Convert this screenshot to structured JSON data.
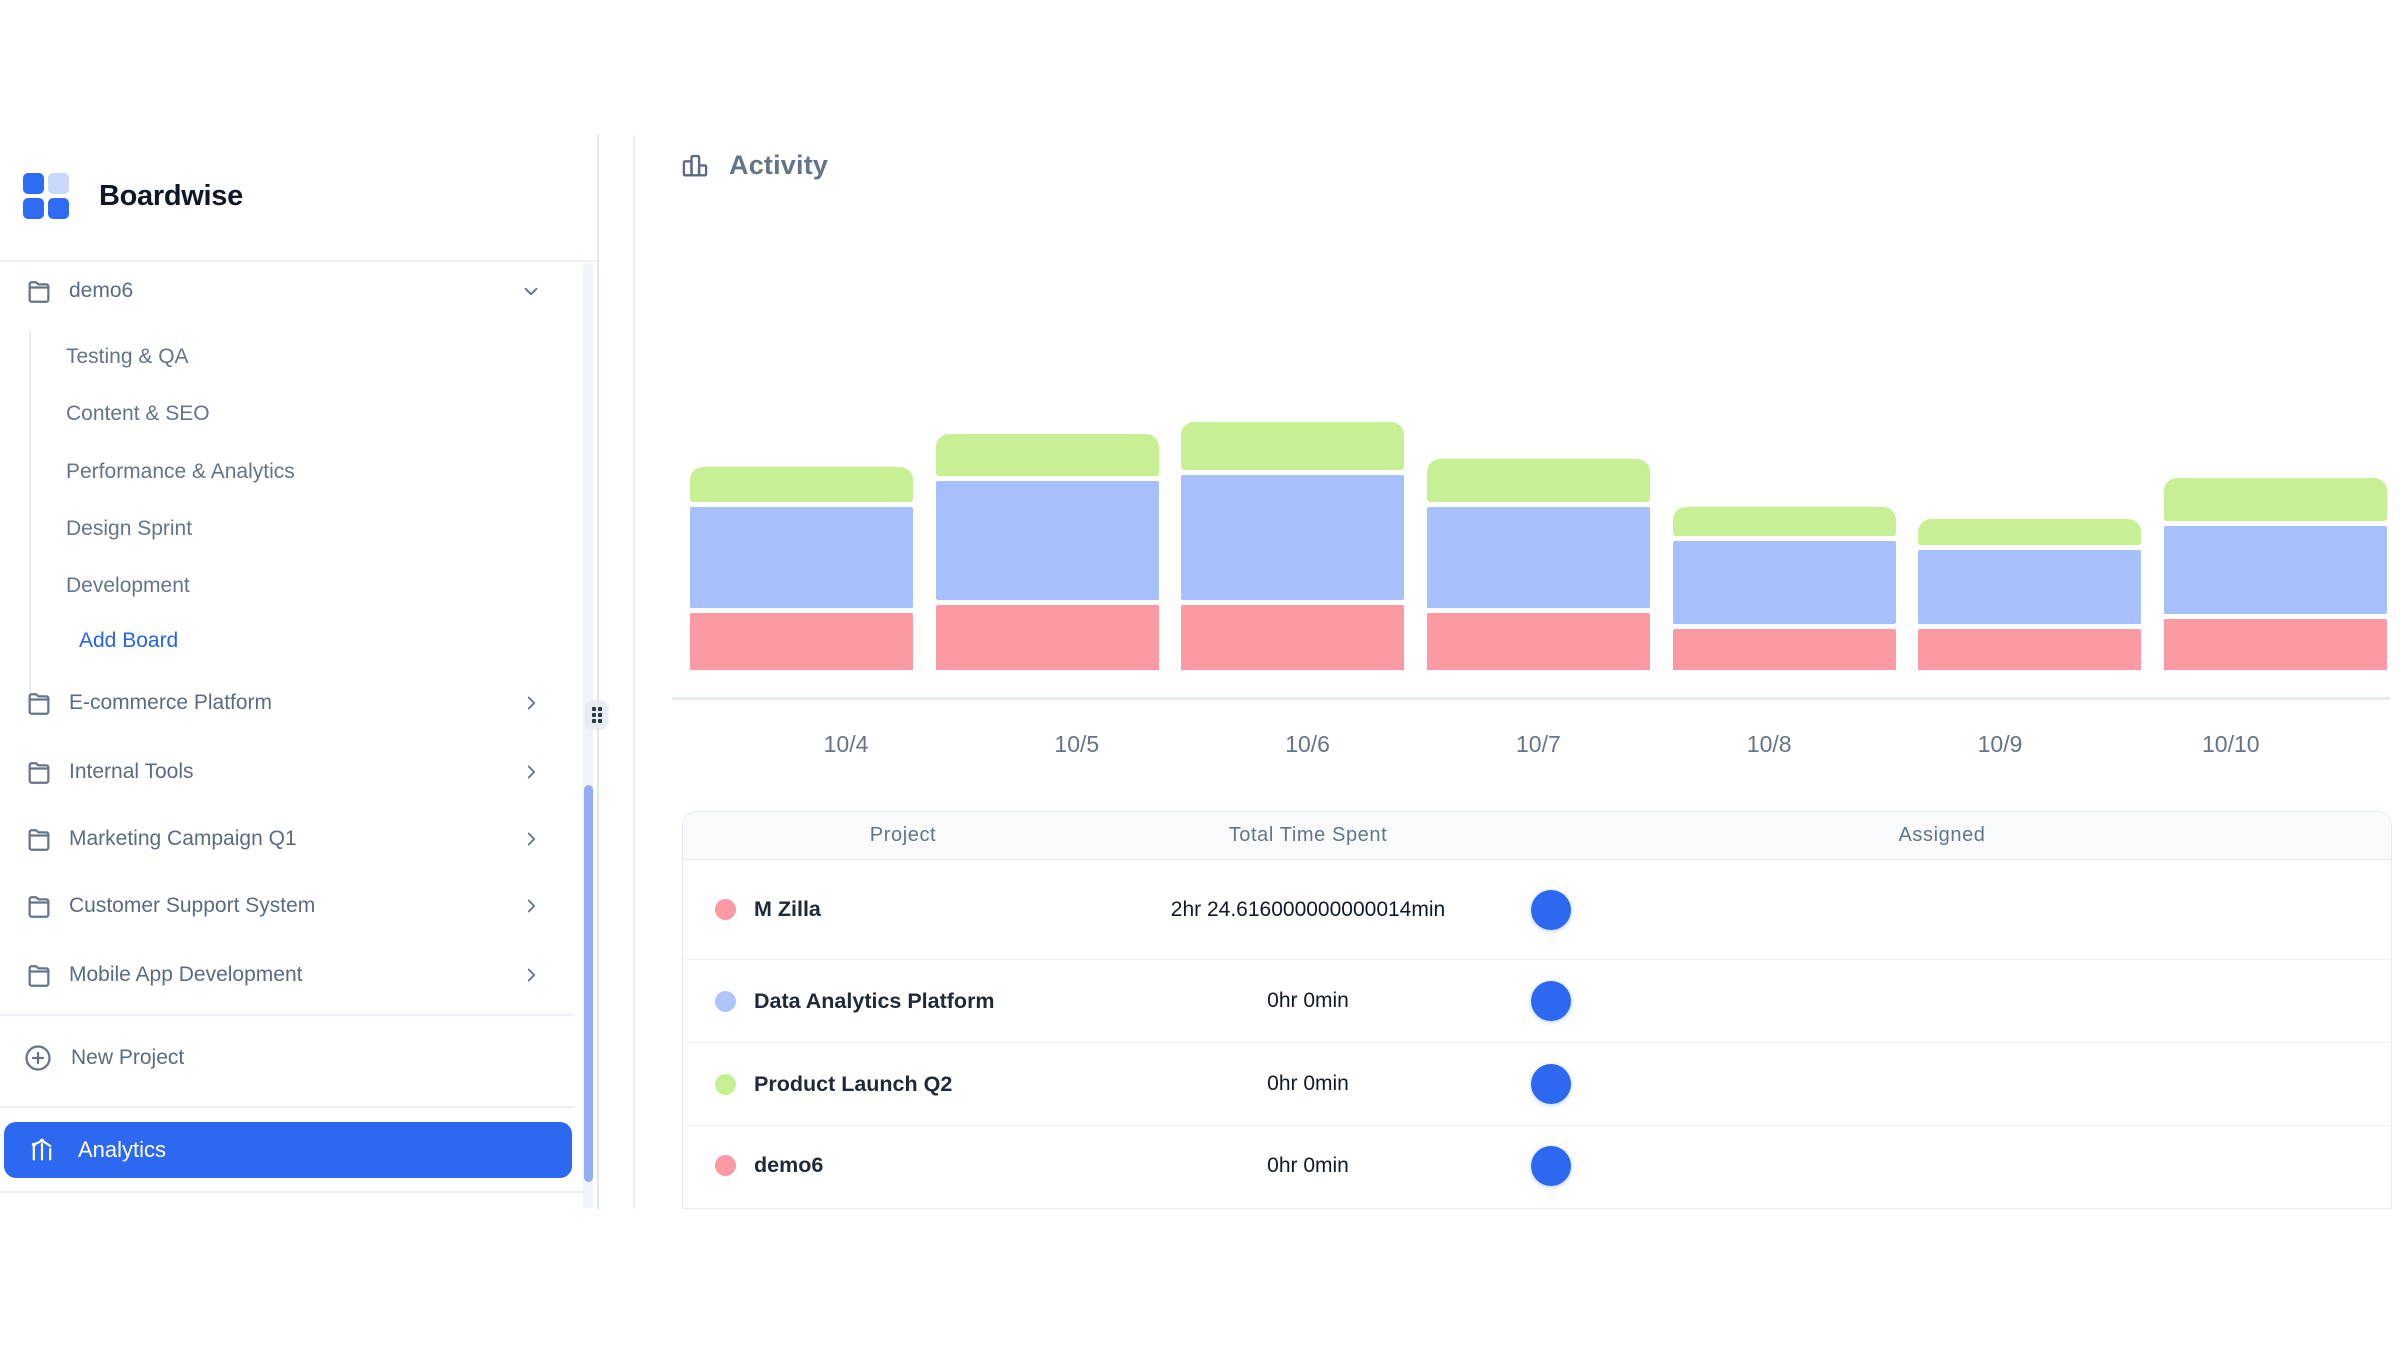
{
  "app": {
    "brand": "Boardwise"
  },
  "icons": {
    "logo": "grid-2x2-squares",
    "folder": "folder-outline",
    "chevron_down": "chevron-down",
    "chevron_right": "chevron-right",
    "new_project": "plus-circle",
    "analytics": "line-chart-with-dots",
    "activity": "bar-chart-columns",
    "resize_handle": "drag-grip-dots"
  },
  "sidebar": {
    "active_project": "demo6",
    "boards": [
      "Testing & QA",
      "Content & SEO",
      "Performance & Analytics",
      "Design Sprint",
      "Development"
    ],
    "add_board_label": "Add Board",
    "projects": [
      "E-commerce Platform",
      "Internal Tools",
      "Marketing Campaign Q1",
      "Customer Support System",
      "Mobile App Development"
    ],
    "new_project_label": "New Project",
    "analytics_label": "Analytics"
  },
  "main": {
    "section_title": "Activity",
    "table": {
      "columns": [
        "Project",
        "Total Time Spent",
        "Assigned"
      ],
      "rows": [
        {
          "project": "M Zilla",
          "color": "#fb9aa2",
          "time": "2hr 24.616000000000014min"
        },
        {
          "project": "Data Analytics Platform",
          "color": "#aec5fb",
          "time": "0hr 0min"
        },
        {
          "project": "Product Launch Q2",
          "color": "#c7f094",
          "time": "0hr 0min"
        },
        {
          "project": "demo6",
          "color": "#fb9aa2",
          "time": "0hr 0min"
        }
      ]
    }
  },
  "chart_data": {
    "type": "bar",
    "stacked": true,
    "title": "Activity",
    "categories": [
      "10/4",
      "10/5",
      "10/6",
      "10/7",
      "10/8",
      "10/9",
      "10/10"
    ],
    "series": [
      {
        "name": "M Zilla",
        "color": "#fb9aa2",
        "values": [
          57,
          65,
          65,
          57,
          41,
          41,
          51
        ]
      },
      {
        "name": "Data Analytics Platform",
        "color": "#a6c0fb",
        "values": [
          101,
          119,
          125,
          101,
          83,
          74,
          88
        ]
      },
      {
        "name": "Product Launch Q2",
        "color": "#c7f094",
        "values": [
          35,
          42,
          48,
          43,
          29,
          26,
          43
        ]
      }
    ],
    "unit": "screen-px (no y-axis ticks shown in chart)",
    "stack_order": "bottom-to-top: M Zilla, Data Analytics Platform, Product Launch Q2",
    "xlabel": "date",
    "ylabel": "",
    "legend": "none",
    "gridlines": false
  },
  "colors": {
    "accent": "#2c68f0",
    "logo_primary": "#2f6cf4",
    "logo_light": "#c9d8fc",
    "add_board_link": "#2563eb",
    "scrollbar_thumb": "#93aef5",
    "sidebar_border": "#e2e8f0",
    "table_header_bg": "#f8fafc"
  }
}
